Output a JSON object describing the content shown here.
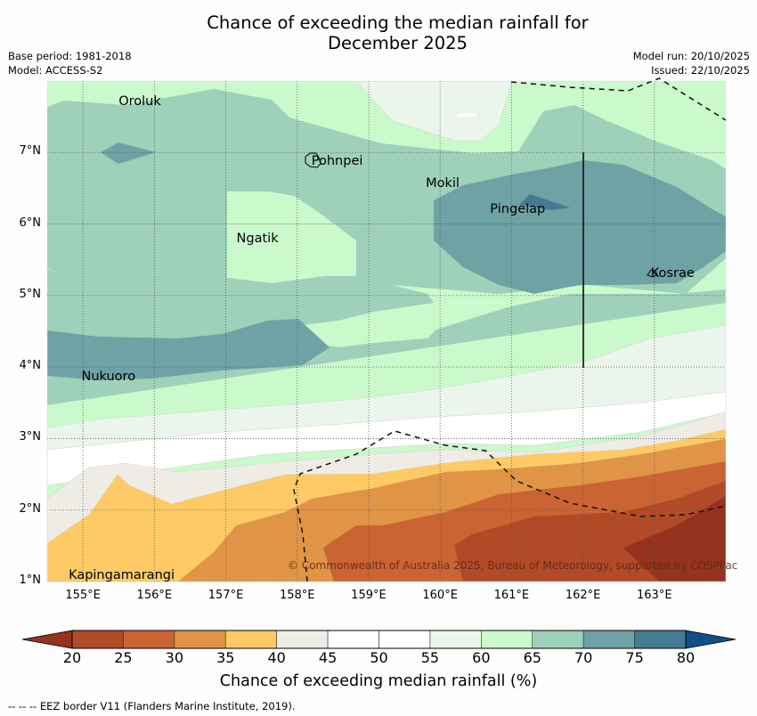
{
  "title_line1": "Chance of exceeding the median rainfall for",
  "title_line2": "December 2025",
  "meta": {
    "base_period": "Base period: 1981-2018",
    "model": "Model: ACCESS-S2",
    "model_run": "Model run: 20/10/2025",
    "issued": "Issued: 22/10/2025"
  },
  "axes": {
    "lat_labels": [
      "7°N",
      "6°N",
      "5°N",
      "4°N",
      "3°N",
      "2°N",
      "1°N"
    ],
    "lon_labels": [
      "155°E",
      "156°E",
      "157°E",
      "158°E",
      "159°E",
      "160°E",
      "161°E",
      "162°E",
      "163°E"
    ],
    "lon_range": [
      154.5,
      164.0
    ],
    "lat_range": [
      1.0,
      8.0
    ]
  },
  "places": [
    {
      "name": "Oroluk",
      "lon": 155.5,
      "lat": 7.7
    },
    {
      "name": "Pohnpei",
      "lon": 158.2,
      "lat": 6.87
    },
    {
      "name": "Mokil",
      "lon": 159.8,
      "lat": 6.55
    },
    {
      "name": "Pingelap",
      "lon": 160.7,
      "lat": 6.2
    },
    {
      "name": "Ngatik",
      "lon": 157.15,
      "lat": 5.78
    },
    {
      "name": "Kosrae",
      "lon": 162.95,
      "lat": 5.3
    },
    {
      "name": "Nukuoro",
      "lon": 154.98,
      "lat": 3.85
    },
    {
      "name": "Kapingamarangi",
      "lon": 154.8,
      "lat": 1.07
    }
  ],
  "copyright": "© Commonwealth of Australia 2025, Bureau of Meteorology, supported by COSPPac",
  "colorbar": {
    "title": "Chance of exceeding median rainfall (%)",
    "ticks": [
      "20",
      "25",
      "30",
      "35",
      "40",
      "45",
      "50",
      "55",
      "60",
      "65",
      "70",
      "75",
      "80"
    ],
    "under_color": "#95331f",
    "over_color": "#134f87",
    "colors": [
      "#b04a27",
      "#ca6432",
      "#e09446",
      "#fdca65",
      "#efece6",
      "#ffffff",
      "#ffffff",
      "#ebf5eb",
      "#caf9cb",
      "#9ed0ba",
      "#6ea2a5",
      "#457a95"
    ]
  },
  "footnote": "--  --  -- EEZ border V11 (Flanders Marine Institute, 2019)."
}
